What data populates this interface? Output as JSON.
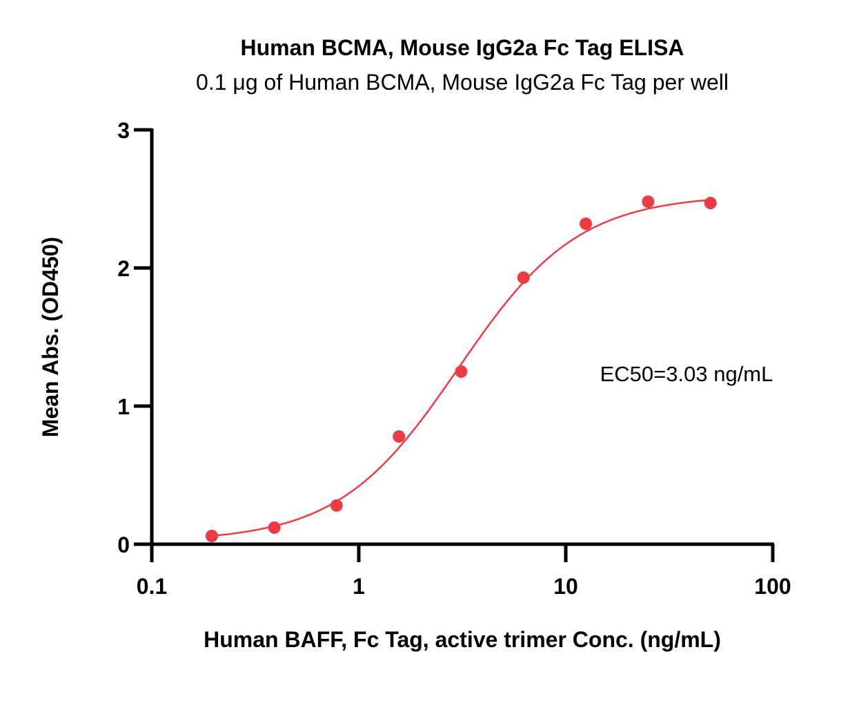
{
  "chart_data": {
    "type": "scatter",
    "title": "Human BCMA, Mouse IgG2a Fc Tag ELISA",
    "subtitle": "0.1 μg of Human BCMA, Mouse IgG2a Fc Tag per well",
    "xlabel": "Human BAFF, Fc Tag, active trimer Conc. (ng/mL)",
    "ylabel": "Mean Abs. (OD450)",
    "x_scale": "log",
    "xlim": [
      0.1,
      100
    ],
    "ylim": [
      0,
      3
    ],
    "x_ticks": [
      {
        "value": 0.1,
        "label": "0.1"
      },
      {
        "value": 1,
        "label": "1"
      },
      {
        "value": 10,
        "label": "10"
      },
      {
        "value": 100,
        "label": "100"
      }
    ],
    "y_ticks": [
      {
        "value": 0,
        "label": "0"
      },
      {
        "value": 1,
        "label": "1"
      },
      {
        "value": 2,
        "label": "2"
      },
      {
        "value": 3,
        "label": "3"
      }
    ],
    "grid": false,
    "legend": "none",
    "color": "#ef3a44",
    "series": [
      {
        "x": [
          0.195,
          0.391,
          0.781,
          1.563,
          3.125,
          6.25,
          12.5,
          25,
          50
        ],
        "y": [
          0.06,
          0.12,
          0.28,
          0.78,
          1.25,
          1.93,
          2.32,
          2.48,
          2.47
        ]
      }
    ],
    "fit": {
      "type": "4PL",
      "bottom": 0.02,
      "top": 2.53,
      "ec50": 3.03,
      "hill": 1.5
    },
    "annotations": [
      "EC50=3.03 ng/mL"
    ]
  }
}
